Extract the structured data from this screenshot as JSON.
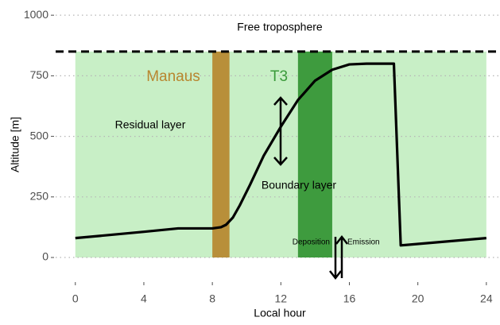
{
  "chart_data": {
    "type": "line",
    "x": [
      0,
      2,
      4,
      6,
      8,
      8.5,
      8.8,
      9.2,
      9.6,
      10.2,
      11,
      12,
      13,
      14,
      15,
      16,
      17,
      18,
      18.6,
      19,
      24
    ],
    "series": [
      {
        "name": "Boundary layer height",
        "color": "#000000",
        "values": [
          80,
          93,
          106,
          120,
          120,
          125,
          135,
          165,
          215,
          300,
          420,
          540,
          650,
          730,
          775,
          797,
          800,
          800,
          800,
          50,
          80
        ]
      }
    ],
    "xlim": [
      -1.15,
      24.75
    ],
    "xticks": [
      0,
      4,
      8,
      12,
      16,
      20,
      24
    ],
    "ylim": [
      -95,
      1030
    ],
    "yticks": [
      0,
      250,
      500,
      750,
      1000
    ],
    "xlabel": "Local hour",
    "ylabel": "Altitude [m]",
    "grid": true,
    "layer_region": {
      "x": [
        0,
        24
      ],
      "y": [
        0,
        850
      ],
      "color": "#c8efc6"
    },
    "free_troposphere": {
      "level": 850,
      "label": "Free troposphere"
    },
    "bands": [
      {
        "name": "Manaus",
        "x": [
          8,
          9
        ],
        "color": "#b88f3a"
      },
      {
        "name": "T3",
        "x": [
          13,
          15
        ],
        "color": "#3e9b3e"
      }
    ],
    "annotations": [
      "Residual layer",
      "Boundary layer",
      "Deposition",
      "Emission"
    ]
  }
}
